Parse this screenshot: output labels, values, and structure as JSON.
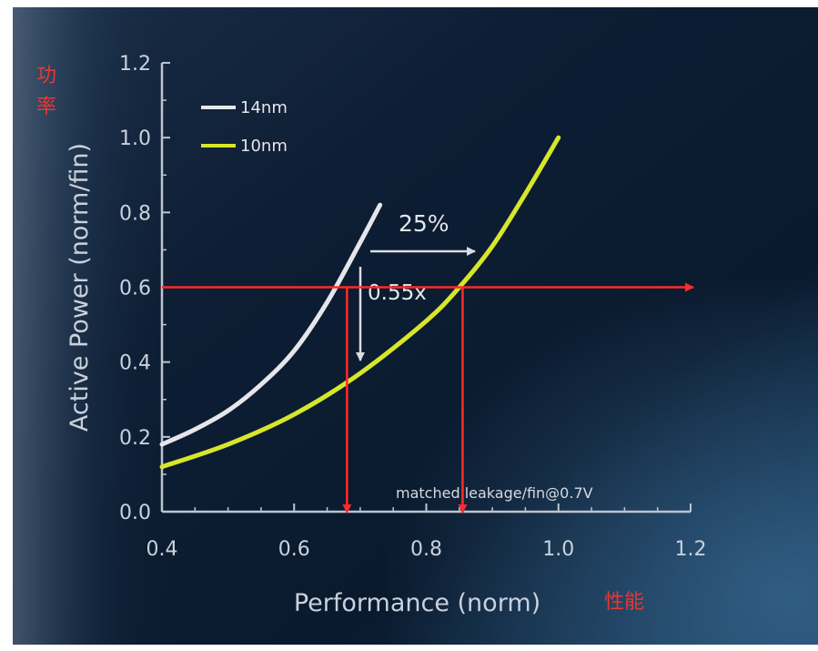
{
  "chart_data": {
    "type": "line",
    "xlabel": "Performance (norm)",
    "ylabel": "Active Power (norm/fin)",
    "xlim": [
      0.4,
      1.2
    ],
    "ylim": [
      0.0,
      1.2
    ],
    "xticks": [
      "0.4",
      "0.6",
      "0.8",
      "1.0",
      "1.2"
    ],
    "yticks": [
      "0.0",
      "0.2",
      "0.4",
      "0.6",
      "0.8",
      "1.0",
      "1.2"
    ],
    "grid": false,
    "legend_position": "top-left",
    "series": [
      {
        "name": "14nm",
        "color": "#e6e6ea",
        "x": [
          0.4,
          0.45,
          0.5,
          0.55,
          0.6,
          0.65,
          0.7,
          0.73
        ],
        "y": [
          0.18,
          0.22,
          0.27,
          0.34,
          0.43,
          0.56,
          0.72,
          0.82
        ]
      },
      {
        "name": "10nm",
        "color": "#d7e62a",
        "x": [
          0.4,
          0.5,
          0.6,
          0.7,
          0.8,
          0.85,
          0.9,
          0.95,
          1.0
        ],
        "y": [
          0.12,
          0.18,
          0.26,
          0.37,
          0.51,
          0.6,
          0.71,
          0.85,
          1.0
        ]
      }
    ],
    "annotations": {
      "performance_gain": "25%",
      "power_ratio": "0.55x",
      "note": "matched leakage/fin@0.7V"
    },
    "overlay": {
      "color": "#ff2a2a",
      "horizontal_y": 0.6,
      "drop_x": [
        0.68,
        0.855
      ]
    }
  },
  "overlay_labels": {
    "y_axis_cn_1": "功",
    "y_axis_cn_2": "率",
    "x_axis_cn": "性能"
  }
}
